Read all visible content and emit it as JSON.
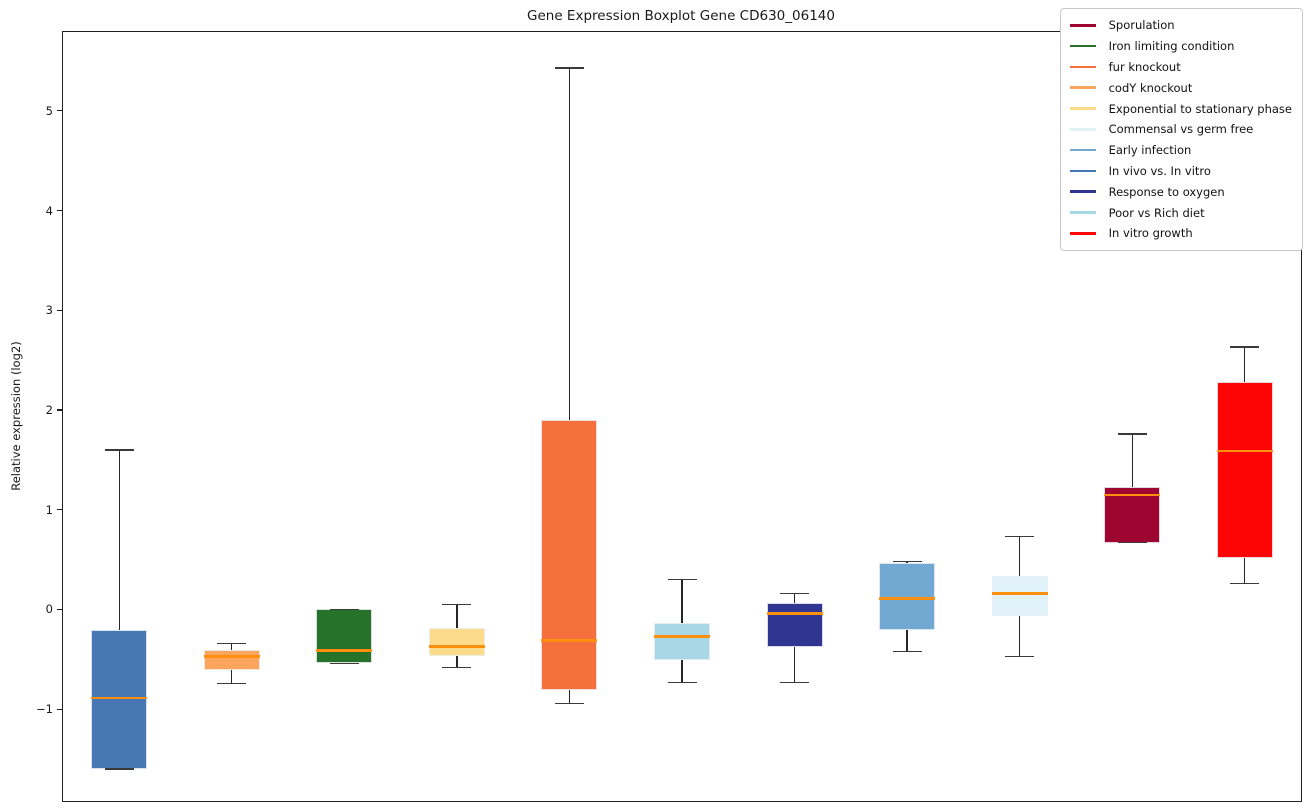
{
  "chart_data": {
    "type": "boxplot",
    "title": "Gene Expression Boxplot Gene CD630_06140",
    "xlabel": "",
    "ylabel": "Relative expression (log2)",
    "ylim": [
      -1.92,
      5.79
    ],
    "yticks": [
      -1,
      0,
      1,
      2,
      3,
      4,
      5
    ],
    "grid": false,
    "legend_position": "upper right",
    "median_color": "#ff8f0e",
    "series": [
      {
        "name": "In vivo vs. In vitro",
        "color": "#4878b4",
        "whisker_low": -1.6,
        "q1": -1.6,
        "median": -0.89,
        "q3": -0.21,
        "whisker_high": 1.6
      },
      {
        "name": "codY knockout",
        "color": "#fba45c",
        "whisker_low": -0.74,
        "q1": -0.61,
        "median": -0.47,
        "q3": -0.41,
        "whisker_high": -0.34
      },
      {
        "name": "Iron limiting condition",
        "color": "#26722a",
        "whisker_low": -0.54,
        "q1": -0.54,
        "median": -0.41,
        "q3": 0.0,
        "whisker_high": 0.0
      },
      {
        "name": "Exponential to stationary phase",
        "color": "#fcdb8a",
        "whisker_low": -0.58,
        "q1": -0.47,
        "median": -0.37,
        "q3": -0.19,
        "whisker_high": 0.05
      },
      {
        "name": "fur knockout",
        "color": "#f4713e",
        "whisker_low": -0.94,
        "q1": -0.81,
        "median": -0.31,
        "q3": 1.9,
        "whisker_high": 5.43
      },
      {
        "name": "Poor vs Rich diet",
        "color": "#a8d8e6",
        "whisker_low": -0.73,
        "q1": -0.51,
        "median": -0.27,
        "q3": -0.14,
        "whisker_high": 0.3
      },
      {
        "name": "Response to oxygen",
        "color": "#2f3590",
        "whisker_low": -0.73,
        "q1": -0.38,
        "median": -0.04,
        "q3": 0.07,
        "whisker_high": 0.16
      },
      {
        "name": "Early infection",
        "color": "#72a9d3",
        "whisker_low": -0.42,
        "q1": -0.21,
        "median": 0.11,
        "q3": 0.47,
        "whisker_high": 0.48
      },
      {
        "name": "Commensal vs germ free",
        "color": "#e0f2f8",
        "whisker_low": -0.47,
        "q1": -0.07,
        "median": 0.16,
        "q3": 0.34,
        "whisker_high": 0.73
      },
      {
        "name": "Sporulation",
        "color": "#9e0531",
        "whisker_low": 0.67,
        "q1": 0.67,
        "median": 1.15,
        "q3": 1.23,
        "whisker_high": 1.76
      },
      {
        "name": "In vitro growth",
        "color": "#fe0505",
        "whisker_low": 0.26,
        "q1": 0.52,
        "median": 1.59,
        "q3": 2.28,
        "whisker_high": 2.63
      }
    ],
    "legend": [
      {
        "label": "Sporulation",
        "color": "#9e0531"
      },
      {
        "label": "Iron limiting condition",
        "color": "#26722a"
      },
      {
        "label": "fur knockout",
        "color": "#f4713e"
      },
      {
        "label": "codY knockout",
        "color": "#fba45c"
      },
      {
        "label": "Exponential to stationary phase",
        "color": "#fcdb8a"
      },
      {
        "label": "Commensal vs germ free",
        "color": "#e0f2f8"
      },
      {
        "label": "Early infection",
        "color": "#72a9d3"
      },
      {
        "label": "In vivo vs. In vitro",
        "color": "#4878b4"
      },
      {
        "label": "Response to oxygen",
        "color": "#2f3590"
      },
      {
        "label": "Poor vs Rich diet",
        "color": "#a8d8e6"
      },
      {
        "label": "In vitro growth",
        "color": "#fe0505"
      }
    ]
  }
}
